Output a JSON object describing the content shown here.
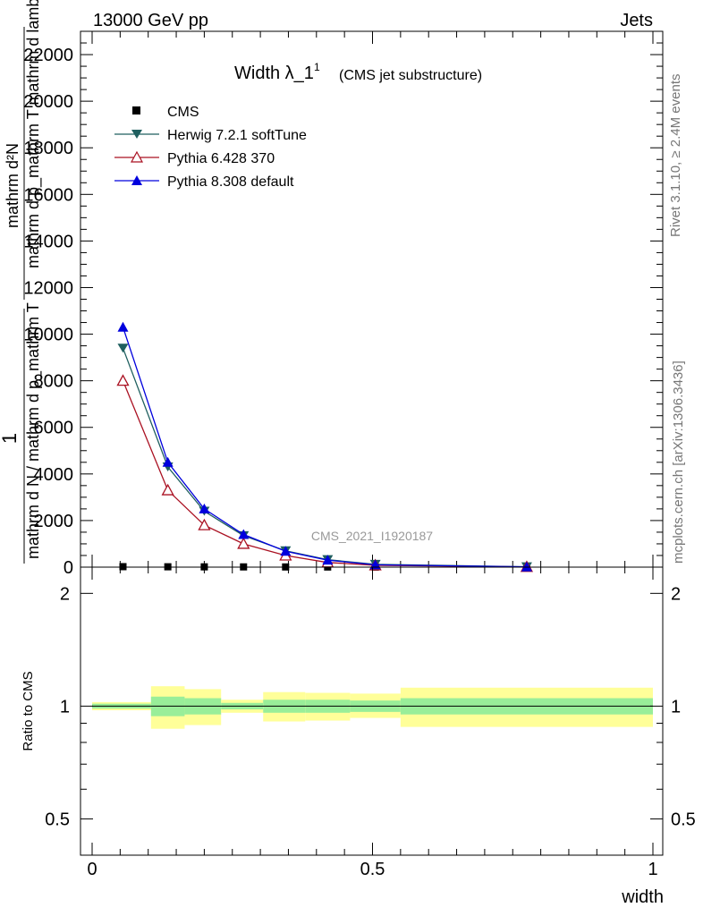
{
  "header": {
    "left": "13000 GeV pp",
    "right": "Jets"
  },
  "side": {
    "rivet": "Rivet 3.1.10, ≥ 2.4M events",
    "mcplots": "mcplots.cern.ch [arXiv:1306.3436]"
  },
  "chart_data": [
    {
      "type": "line",
      "title": "Width λ_1",
      "title_sup": "1",
      "subtitle": "(CMS jet substructure)",
      "watermark": "CMS_2021_I1920187",
      "ylabel_num": "mathrm d²N",
      "ylabel_den": "mathrm d p_mathrm T mathrm d lambda",
      "ylabel_prefix_num": "1",
      "ylabel_prefix_den": "mathrm d N / mathrm d p_mathrm T",
      "xlim": [
        0,
        1
      ],
      "ylim": [
        0,
        23000
      ],
      "yticks": [
        0,
        2000,
        4000,
        6000,
        8000,
        10000,
        12000,
        14000,
        16000,
        18000,
        20000,
        22000
      ],
      "ytick_labels": [
        "0",
        "2000",
        "4000",
        "6000",
        "8000",
        "10000",
        "12000",
        "14000",
        "16000",
        "18000",
        "20000",
        "22000"
      ],
      "legend_position": "top-left",
      "legend": [
        "CMS",
        "Herwig 7.2.1 softTune",
        "Pythia 6.428 370",
        "Pythia 8.308 default"
      ],
      "x": [
        0.055,
        0.135,
        0.2,
        0.27,
        0.345,
        0.42,
        0.505,
        0.775
      ],
      "series": [
        {
          "name": "CMS",
          "color": "#000000",
          "marker": "square",
          "values": [
            20,
            15,
            12,
            10,
            8,
            6,
            4,
            2
          ]
        },
        {
          "name": "Herwig 7.2.1 softTune",
          "color": "#1f5f5f",
          "marker": "triangle-down",
          "values": [
            9400,
            4300,
            2400,
            1350,
            700,
            320,
            120,
            15
          ]
        },
        {
          "name": "Pythia 6.428 370",
          "color": "#aa1122",
          "marker": "triangle-up-open",
          "values": [
            8000,
            3300,
            1800,
            1000,
            500,
            200,
            80,
            10
          ]
        },
        {
          "name": "Pythia 8.308 default",
          "color": "#0000dd",
          "marker": "triangle-up",
          "values": [
            10300,
            4500,
            2500,
            1400,
            680,
            300,
            100,
            12
          ]
        }
      ]
    },
    {
      "type": "area",
      "ylabel": "Ratio to CMS",
      "xlabel": "width",
      "xlim": [
        0,
        1
      ],
      "ylim": [
        0.4,
        2.35
      ],
      "log_y": true,
      "xticks": [
        0,
        0.5,
        1
      ],
      "xtick_labels": [
        "0",
        "0.5",
        "1"
      ],
      "yticks": [
        0.5,
        1,
        2
      ],
      "ytick_labels": [
        "0.5",
        "1",
        "2"
      ],
      "reference_line": 1,
      "bins": [
        {
          "x0": 0.0,
          "x1": 0.105,
          "inner": [
            0.985,
            1.015
          ],
          "outer": [
            0.975,
            1.025
          ]
        },
        {
          "x0": 0.105,
          "x1": 0.165,
          "inner": [
            0.94,
            1.06
          ],
          "outer": [
            0.87,
            1.13
          ]
        },
        {
          "x0": 0.165,
          "x1": 0.23,
          "inner": [
            0.95,
            1.05
          ],
          "outer": [
            0.89,
            1.11
          ]
        },
        {
          "x0": 0.23,
          "x1": 0.305,
          "inner": [
            0.98,
            1.02
          ],
          "outer": [
            0.96,
            1.04
          ]
        },
        {
          "x0": 0.305,
          "x1": 0.38,
          "inner": [
            0.96,
            1.04
          ],
          "outer": [
            0.91,
            1.09
          ]
        },
        {
          "x0": 0.38,
          "x1": 0.46,
          "inner": [
            0.96,
            1.04
          ],
          "outer": [
            0.915,
            1.085
          ]
        },
        {
          "x0": 0.46,
          "x1": 0.55,
          "inner": [
            0.965,
            1.035
          ],
          "outer": [
            0.93,
            1.08
          ]
        },
        {
          "x0": 0.55,
          "x1": 1.0,
          "inner": [
            0.95,
            1.05
          ],
          "outer": [
            0.88,
            1.12
          ]
        }
      ],
      "colors": {
        "inner": "#99ee99",
        "outer": "#ffff99"
      }
    }
  ]
}
